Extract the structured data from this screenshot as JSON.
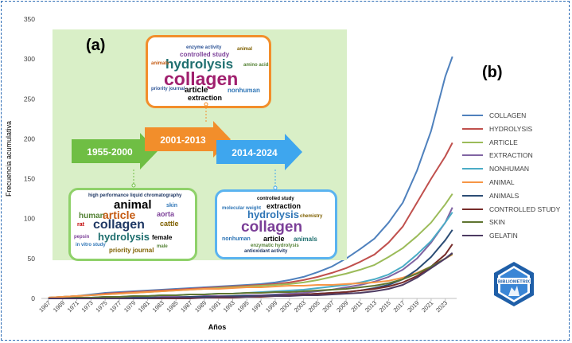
{
  "panel_a_label": "(a)",
  "panel_b_label": "(b)",
  "periods": [
    "1955-2000",
    "2001-2013",
    "2014-2024"
  ],
  "logo_text": "BIBLIOMETRIX",
  "colors": {
    "arrow1": "#6fbe44",
    "arrow2": "#f28e2b",
    "arrow3": "#3ea6ee",
    "panel_bg": "#d9efc7"
  },
  "wordcloud_2001_2013": {
    "big": [
      "hydrolysis",
      "collagen"
    ],
    "medium": [
      "article",
      "extraction",
      "controlled study",
      "nonhuman"
    ],
    "small": [
      "enzyme activity",
      "priority journal",
      "animals",
      "amino acids",
      "animal"
    ]
  },
  "wordcloud_1955_2000": {
    "big": [
      "animal",
      "collagen",
      "article",
      "hydrolysis"
    ],
    "medium": [
      "human",
      "aorta",
      "cattle",
      "female",
      "skin",
      "priority journal"
    ],
    "small": [
      "high performance liquid chromatography",
      "rat",
      "pepsin",
      "in vitro study",
      "male"
    ]
  },
  "wordcloud_2014_2024": {
    "big": [
      "hydrolysis",
      "collagen"
    ],
    "medium": [
      "extraction",
      "article",
      "animals",
      "nonhuman"
    ],
    "small": [
      "controlled study",
      "chemistry",
      "enzymatic hydrolysis",
      "molecular weight",
      "antioxidant activity"
    ]
  },
  "chart_data": {
    "type": "line",
    "xlabel": "Años",
    "ylabel": "Frecuencia acumulativa",
    "ylim": [
      0,
      350
    ],
    "yticks": [
      0,
      50,
      100,
      150,
      200,
      250,
      300,
      350
    ],
    "xticks": [
      "1967",
      "1969",
      "1971",
      "1973",
      "1975",
      "1977",
      "1979",
      "1981",
      "1983",
      "1985",
      "1987",
      "1989",
      "1991",
      "1993",
      "1995",
      "1997",
      "1999",
      "2001",
      "2003",
      "2005",
      "2007",
      "2009",
      "2011",
      "2013",
      "2015",
      "2017",
      "2019",
      "2021",
      "2023"
    ],
    "x": [
      1967,
      1969,
      1971,
      1973,
      1975,
      1977,
      1979,
      1981,
      1983,
      1985,
      1987,
      1989,
      1991,
      1993,
      1995,
      1997,
      1999,
      2001,
      2003,
      2005,
      2007,
      2009,
      2011,
      2013,
      2015,
      2017,
      2019,
      2021,
      2023,
      2024
    ],
    "series": [
      {
        "name": "COLLAGEN",
        "color": "#4f81bd",
        "values": [
          1,
          2,
          3,
          5,
          7,
          8,
          9,
          10,
          11,
          12,
          13,
          14,
          15,
          16,
          17,
          18,
          20,
          23,
          27,
          33,
          40,
          50,
          62,
          75,
          95,
          120,
          160,
          210,
          278,
          303
        ]
      },
      {
        "name": "HYDROLYSIS",
        "color": "#c0504d",
        "values": [
          1,
          2,
          3,
          4,
          6,
          7,
          8,
          9,
          10,
          11,
          12,
          13,
          14,
          15,
          16,
          17,
          18,
          20,
          23,
          27,
          32,
          38,
          46,
          55,
          70,
          90,
          120,
          150,
          178,
          195
        ]
      },
      {
        "name": "ARTICLE",
        "color": "#9bbb59",
        "values": [
          1,
          2,
          3,
          4,
          5,
          6,
          7,
          8,
          9,
          10,
          11,
          12,
          13,
          14,
          15,
          16,
          17,
          18,
          20,
          23,
          27,
          31,
          36,
          42,
          52,
          63,
          78,
          95,
          118,
          131
        ]
      },
      {
        "name": "EXTRACTION",
        "color": "#8064a2",
        "values": [
          0,
          0,
          0,
          0,
          1,
          1,
          1,
          1,
          2,
          2,
          2,
          3,
          3,
          3,
          4,
          4,
          5,
          6,
          7,
          9,
          11,
          14,
          17,
          21,
          27,
          36,
          50,
          70,
          95,
          114
        ]
      },
      {
        "name": "NONHUMAN",
        "color": "#4bacc6",
        "values": [
          0,
          0,
          1,
          1,
          2,
          2,
          3,
          3,
          4,
          4,
          5,
          5,
          6,
          6,
          7,
          8,
          9,
          10,
          11,
          13,
          15,
          17,
          20,
          24,
          30,
          40,
          55,
          72,
          95,
          108
        ]
      },
      {
        "name": "ANIMAL",
        "color": "#f79646",
        "values": [
          1,
          2,
          3,
          4,
          5,
          6,
          7,
          8,
          9,
          10,
          11,
          12,
          12,
          13,
          14,
          14,
          15,
          16,
          16,
          17,
          17,
          18,
          19,
          20,
          22,
          26,
          32,
          40,
          50,
          55
        ]
      },
      {
        "name": "ANIMALS",
        "color": "#2c4d75",
        "values": [
          0,
          0,
          0,
          0,
          0,
          0,
          1,
          1,
          1,
          1,
          2,
          2,
          2,
          3,
          3,
          3,
          4,
          4,
          5,
          6,
          7,
          8,
          10,
          13,
          17,
          24,
          36,
          52,
          73,
          86
        ]
      },
      {
        "name": "CONTROLLED STUDY",
        "color": "#772c2a",
        "values": [
          0,
          0,
          0,
          0,
          0,
          0,
          0,
          0,
          0,
          0,
          0,
          1,
          1,
          1,
          2,
          2,
          3,
          4,
          5,
          6,
          7,
          8,
          10,
          12,
          15,
          20,
          28,
          40,
          55,
          68
        ]
      },
      {
        "name": "SKIN",
        "color": "#5f7530",
        "values": [
          0,
          0,
          1,
          1,
          2,
          2,
          3,
          3,
          4,
          4,
          5,
          5,
          6,
          6,
          7,
          7,
          8,
          8,
          9,
          10,
          11,
          12,
          14,
          16,
          19,
          24,
          31,
          40,
          50,
          56
        ]
      },
      {
        "name": "GELATIN",
        "color": "#4d3b62",
        "values": [
          0,
          0,
          0,
          0,
          0,
          0,
          0,
          0,
          1,
          1,
          1,
          1,
          2,
          2,
          2,
          3,
          3,
          3,
          4,
          4,
          5,
          6,
          7,
          9,
          12,
          17,
          26,
          38,
          50,
          57
        ]
      }
    ],
    "legend_position": "right",
    "grid": false
  }
}
